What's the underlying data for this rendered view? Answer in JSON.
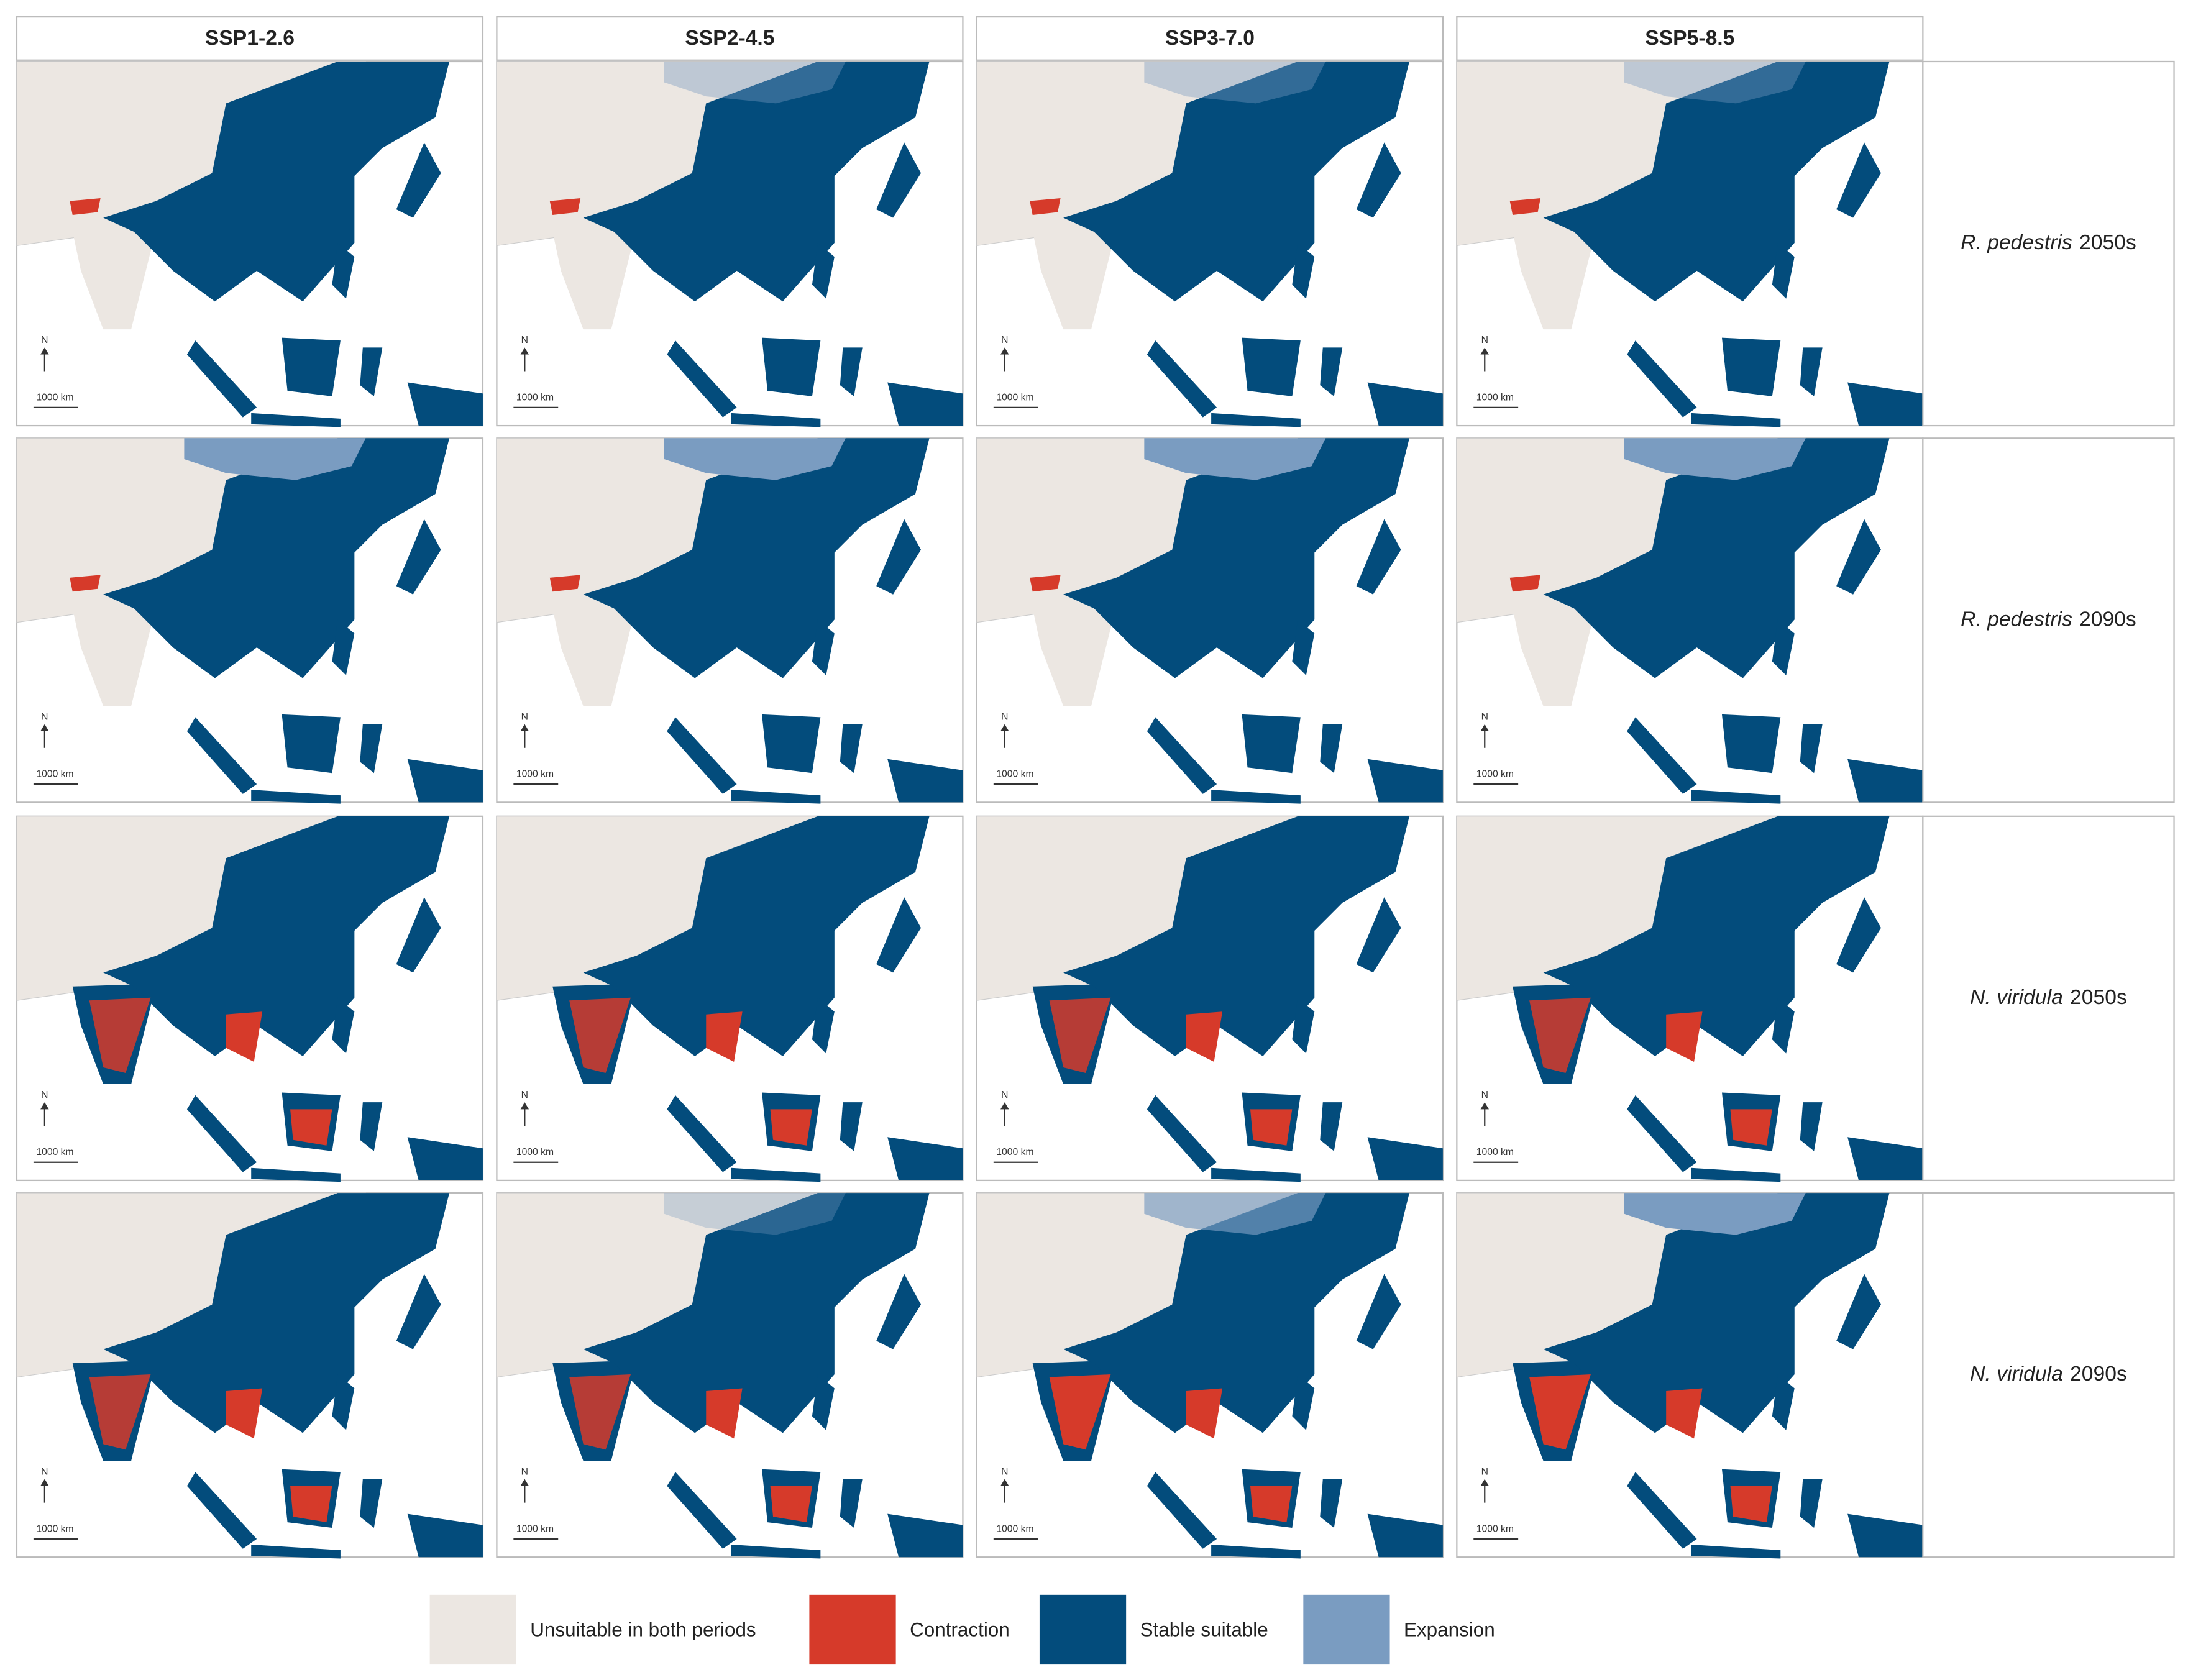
{
  "header": {
    "columns": [
      "SSP1-2.6",
      "SSP2-4.5",
      "SSP3-7.0",
      "SSP5-8.5"
    ]
  },
  "rows": [
    {
      "species": "R. pedestris",
      "period": "2050s"
    },
    {
      "species": "R. pedestris",
      "period": "2090s"
    },
    {
      "species": "N. viridula",
      "period": "2050s"
    },
    {
      "species": "N. viridula",
      "period": "2090s"
    }
  ],
  "map_annotations": {
    "north": "N",
    "scale": "1000 km"
  },
  "legend": [
    {
      "label": "Unsuitable in both periods",
      "color": "#ece7e2"
    },
    {
      "label": "Contraction",
      "color": "#d63a2a"
    },
    {
      "label": "Stable suitable",
      "color": "#034c7c"
    },
    {
      "label": "Expansion",
      "color": "#7a9cc1"
    }
  ]
}
